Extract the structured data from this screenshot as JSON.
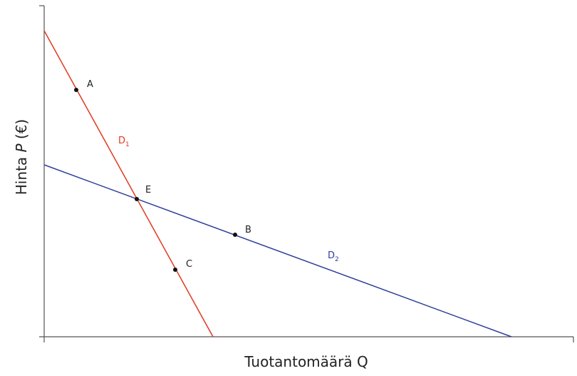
{
  "axes": {
    "y_label": {
      "text": "Hinta ",
      "variable": "P",
      "unit": " (€)"
    },
    "x_label": "Tuotantomäärä Q"
  },
  "curves": [
    {
      "label": "D",
      "subscript": "1"
    },
    {
      "label": "D",
      "subscript": "2"
    }
  ],
  "points": [
    {
      "label": "A"
    },
    {
      "label": "E"
    },
    {
      "label": "B"
    },
    {
      "label": "C"
    }
  ]
}
